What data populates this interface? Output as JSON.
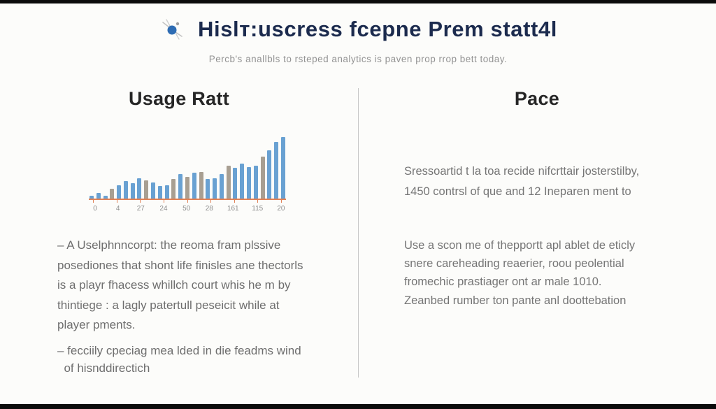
{
  "header": {
    "title": "Hislт:uscress fcepne Prem statt4l",
    "subtitle": "Percb's anallbls to rsteped analytics is paven prop rrop bett today.",
    "icon": "sparkle-dragonfly-icon"
  },
  "left_column": {
    "heading": "Usage Ratt",
    "bullet1_lines": [
      "– A Uselphnncorpt: the reoma fram plssive",
      "posediones that shont life finisles ane thectorls",
      "is a playr fhacess whillch court whis he m by",
      "thintiege : a lagly patertull peseicit while at",
      "player pments."
    ],
    "bullet2_lines": [
      "– fecciily cpeciag mea lded in die feadms wind",
      "  of hisnddirectich"
    ]
  },
  "right_column": {
    "heading": "Pace",
    "paragraph1_lines": [
      "Sressoartid t la toa recide nifcrttair josterstilby,",
      "1450 contrsl of que and 12 Ineparen ment to"
    ],
    "paragraph2_lines": [
      "Use a scon me of thepportt apl ablet de eticly",
      "snere careheading reaerier, roou peolential",
      "fromechic prastiager ont ar male 1010."
    ],
    "paragraph3_lines": [
      "Zeanbed rumber ton pante anl doottebation"
    ]
  },
  "chart_data": {
    "type": "bar",
    "title": "",
    "xlabel": "",
    "ylabel": "",
    "x_tick_labels": [
      "0",
      "4",
      "27",
      "24",
      "50",
      "28",
      "161",
      "115",
      "20"
    ],
    "values": [
      5,
      9,
      5,
      16,
      22,
      28,
      25,
      33,
      30,
      26,
      21,
      22,
      32,
      40,
      35,
      42,
      43,
      32,
      33,
      40,
      53,
      50,
      57,
      51,
      53,
      68,
      78,
      92,
      100
    ],
    "bar_colors": [
      "blue",
      "blue",
      "blue",
      "gray",
      "blue",
      "blue",
      "blue",
      "blue",
      "gray",
      "blue",
      "blue",
      "blue",
      "gray",
      "blue",
      "gray",
      "blue",
      "gray",
      "blue",
      "blue",
      "blue",
      "gray",
      "blue",
      "blue",
      "blue",
      "blue",
      "gray",
      "blue",
      "blue",
      "blue"
    ],
    "ylim": [
      0,
      100
    ],
    "grid": false,
    "legend": false,
    "colors": {
      "blue": "#69a1d2",
      "gray": "#a89f92",
      "axis": "#e08256"
    }
  },
  "colors": {
    "background": "#fcfcfa",
    "title": "#1c2b4e",
    "heading": "#262626",
    "body_text": "#6e6e6e",
    "divider": "#c7c7c7"
  }
}
